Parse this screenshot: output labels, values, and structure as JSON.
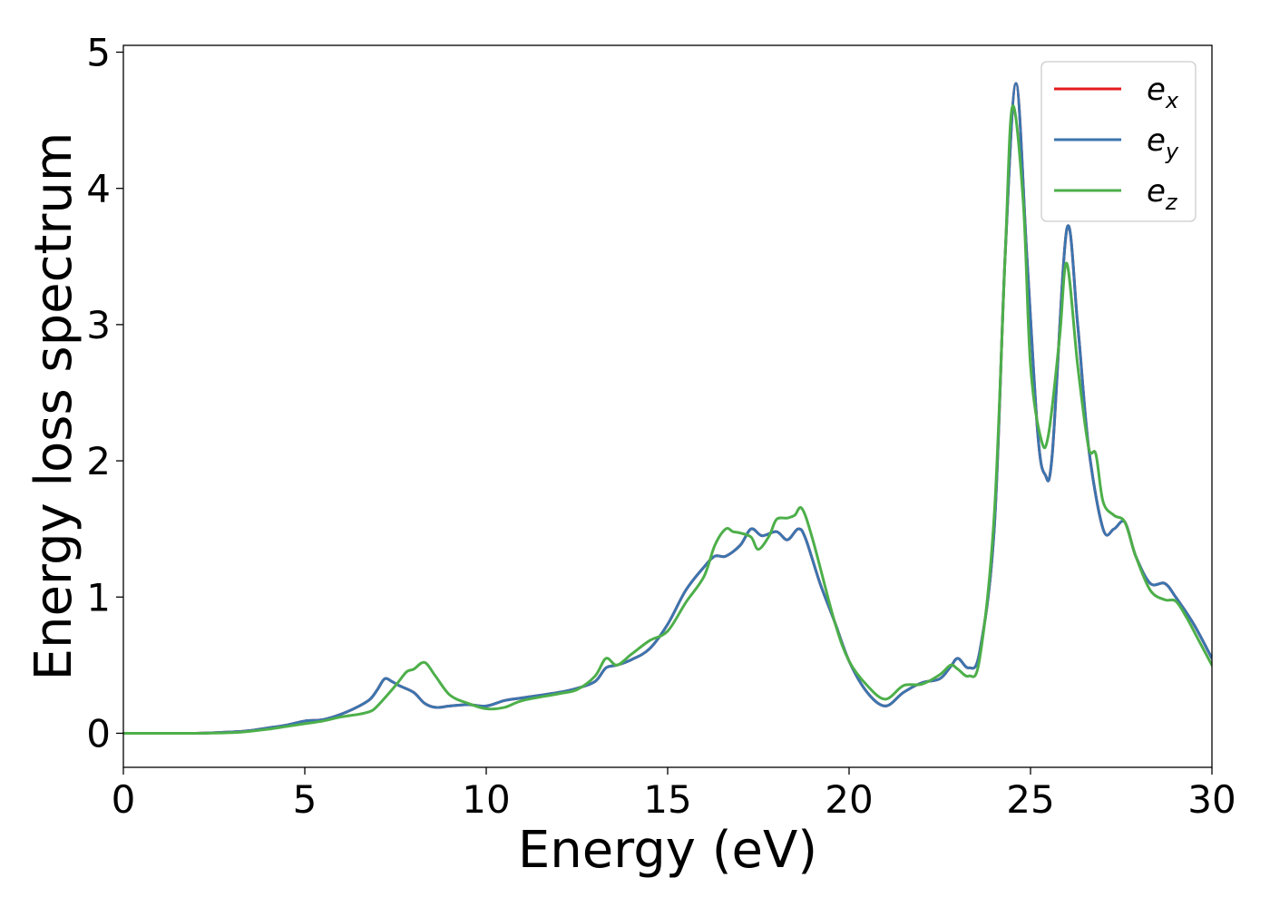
{
  "chart_data": {
    "type": "line",
    "xlabel": "Energy (eV)",
    "ylabel": "Energy loss spectrum",
    "xlim": [
      0,
      30
    ],
    "ylim": [
      -0.25,
      5.05
    ],
    "xticks": [
      "0",
      "5",
      "10",
      "15",
      "20",
      "25",
      "30"
    ],
    "yticks": [
      "0",
      "1",
      "2",
      "3",
      "4",
      "5"
    ],
    "grid": false,
    "legend_position": "top-right",
    "series": [
      {
        "name": "e_x",
        "legend_base": "e",
        "legend_sub": "x",
        "color": "#e41a1c",
        "x": [
          0,
          1,
          2,
          3,
          3.5,
          4,
          4.5,
          5,
          5.5,
          6,
          6.5,
          6.8,
          7,
          7.2,
          7.4,
          7.6,
          8,
          8.3,
          8.6,
          9,
          9.5,
          10,
          10.5,
          11,
          12,
          12.5,
          13,
          13.3,
          13.6,
          14,
          14.5,
          15,
          15.5,
          16,
          16.3,
          16.6,
          17,
          17.3,
          17.6,
          18,
          18.3,
          18.6,
          18.8,
          19.2,
          19.6,
          20,
          20.5,
          21,
          21.5,
          22,
          22.5,
          22.8,
          23,
          23.3,
          23.6,
          24,
          24.3,
          24.6,
          24.9,
          25.2,
          25.4,
          25.6,
          26,
          26.3,
          26.6,
          27,
          27.3,
          27.6,
          27.9,
          28.3,
          28.7,
          29,
          29.5,
          30
        ],
        "values": [
          0,
          0,
          0,
          0.01,
          0.02,
          0.04,
          0.06,
          0.09,
          0.1,
          0.14,
          0.2,
          0.25,
          0.32,
          0.4,
          0.38,
          0.35,
          0.3,
          0.22,
          0.19,
          0.2,
          0.21,
          0.2,
          0.24,
          0.26,
          0.3,
          0.33,
          0.38,
          0.48,
          0.5,
          0.54,
          0.62,
          0.8,
          1.05,
          1.22,
          1.3,
          1.3,
          1.38,
          1.5,
          1.45,
          1.48,
          1.42,
          1.5,
          1.43,
          1.1,
          0.82,
          0.53,
          0.3,
          0.2,
          0.3,
          0.37,
          0.4,
          0.49,
          0.55,
          0.48,
          0.6,
          1.5,
          3.5,
          4.77,
          3.5,
          2.2,
          1.9,
          2.05,
          3.7,
          3.0,
          2.1,
          1.5,
          1.5,
          1.55,
          1.3,
          1.1,
          1.1,
          1.0,
          0.8,
          0.55
        ]
      },
      {
        "name": "e_y",
        "legend_base": "e",
        "legend_sub": "y",
        "color": "#3b75af",
        "x": [
          0,
          1,
          2,
          3,
          3.5,
          4,
          4.5,
          5,
          5.5,
          6,
          6.5,
          6.8,
          7,
          7.2,
          7.4,
          7.6,
          8,
          8.3,
          8.6,
          9,
          9.5,
          10,
          10.5,
          11,
          12,
          12.5,
          13,
          13.3,
          13.6,
          14,
          14.5,
          15,
          15.5,
          16,
          16.3,
          16.6,
          17,
          17.3,
          17.6,
          18,
          18.3,
          18.6,
          18.8,
          19.2,
          19.6,
          20,
          20.5,
          21,
          21.5,
          22,
          22.5,
          22.8,
          23,
          23.3,
          23.6,
          24,
          24.3,
          24.6,
          24.9,
          25.2,
          25.4,
          25.6,
          26,
          26.3,
          26.6,
          27,
          27.3,
          27.6,
          27.9,
          28.3,
          28.7,
          29,
          29.5,
          30
        ],
        "values": [
          0,
          0,
          0,
          0.01,
          0.02,
          0.04,
          0.06,
          0.09,
          0.1,
          0.14,
          0.2,
          0.25,
          0.32,
          0.4,
          0.38,
          0.35,
          0.3,
          0.22,
          0.19,
          0.2,
          0.21,
          0.2,
          0.24,
          0.26,
          0.3,
          0.33,
          0.38,
          0.48,
          0.5,
          0.54,
          0.62,
          0.8,
          1.05,
          1.22,
          1.3,
          1.3,
          1.38,
          1.5,
          1.45,
          1.48,
          1.42,
          1.5,
          1.43,
          1.1,
          0.82,
          0.53,
          0.3,
          0.2,
          0.3,
          0.37,
          0.4,
          0.49,
          0.55,
          0.48,
          0.6,
          1.5,
          3.5,
          4.77,
          3.5,
          2.2,
          1.9,
          2.05,
          3.7,
          3.0,
          2.1,
          1.5,
          1.5,
          1.55,
          1.3,
          1.1,
          1.1,
          1.0,
          0.8,
          0.55
        ]
      },
      {
        "name": "e_z",
        "legend_base": "e",
        "legend_sub": "z",
        "color": "#4daf4a",
        "x": [
          0,
          1,
          2,
          3,
          3.5,
          4,
          4.5,
          5,
          5.5,
          6,
          6.5,
          6.8,
          7,
          7.5,
          7.8,
          8,
          8.3,
          8.6,
          9,
          9.5,
          10,
          10.5,
          11,
          12,
          12.5,
          13,
          13.3,
          13.6,
          14,
          14.5,
          15,
          15.5,
          16,
          16.3,
          16.6,
          16.8,
          17,
          17.3,
          17.5,
          17.8,
          18,
          18.3,
          18.5,
          18.7,
          19,
          19.6,
          20,
          20.5,
          21,
          21.5,
          22,
          22.5,
          22.8,
          23,
          23.3,
          23.6,
          24,
          24.3,
          24.5,
          24.8,
          25,
          25.3,
          25.5,
          25.8,
          26,
          26.3,
          26.6,
          26.8,
          27,
          27.3,
          27.6,
          27.9,
          28.3,
          28.7,
          29,
          29.3,
          29.6,
          30
        ],
        "values": [
          0,
          0,
          0,
          0.005,
          0.015,
          0.03,
          0.05,
          0.07,
          0.09,
          0.12,
          0.14,
          0.16,
          0.2,
          0.35,
          0.45,
          0.47,
          0.52,
          0.42,
          0.28,
          0.22,
          0.18,
          0.19,
          0.24,
          0.29,
          0.32,
          0.42,
          0.55,
          0.5,
          0.58,
          0.68,
          0.75,
          0.96,
          1.15,
          1.38,
          1.5,
          1.48,
          1.47,
          1.44,
          1.35,
          1.45,
          1.57,
          1.58,
          1.6,
          1.65,
          1.42,
          0.82,
          0.53,
          0.35,
          0.25,
          0.35,
          0.36,
          0.43,
          0.5,
          0.47,
          0.42,
          0.55,
          1.6,
          3.5,
          4.6,
          3.9,
          2.7,
          2.15,
          2.2,
          2.9,
          3.45,
          2.7,
          2.1,
          2.05,
          1.7,
          1.6,
          1.55,
          1.3,
          1.05,
          0.98,
          0.97,
          0.85,
          0.7,
          0.5
        ]
      }
    ]
  }
}
